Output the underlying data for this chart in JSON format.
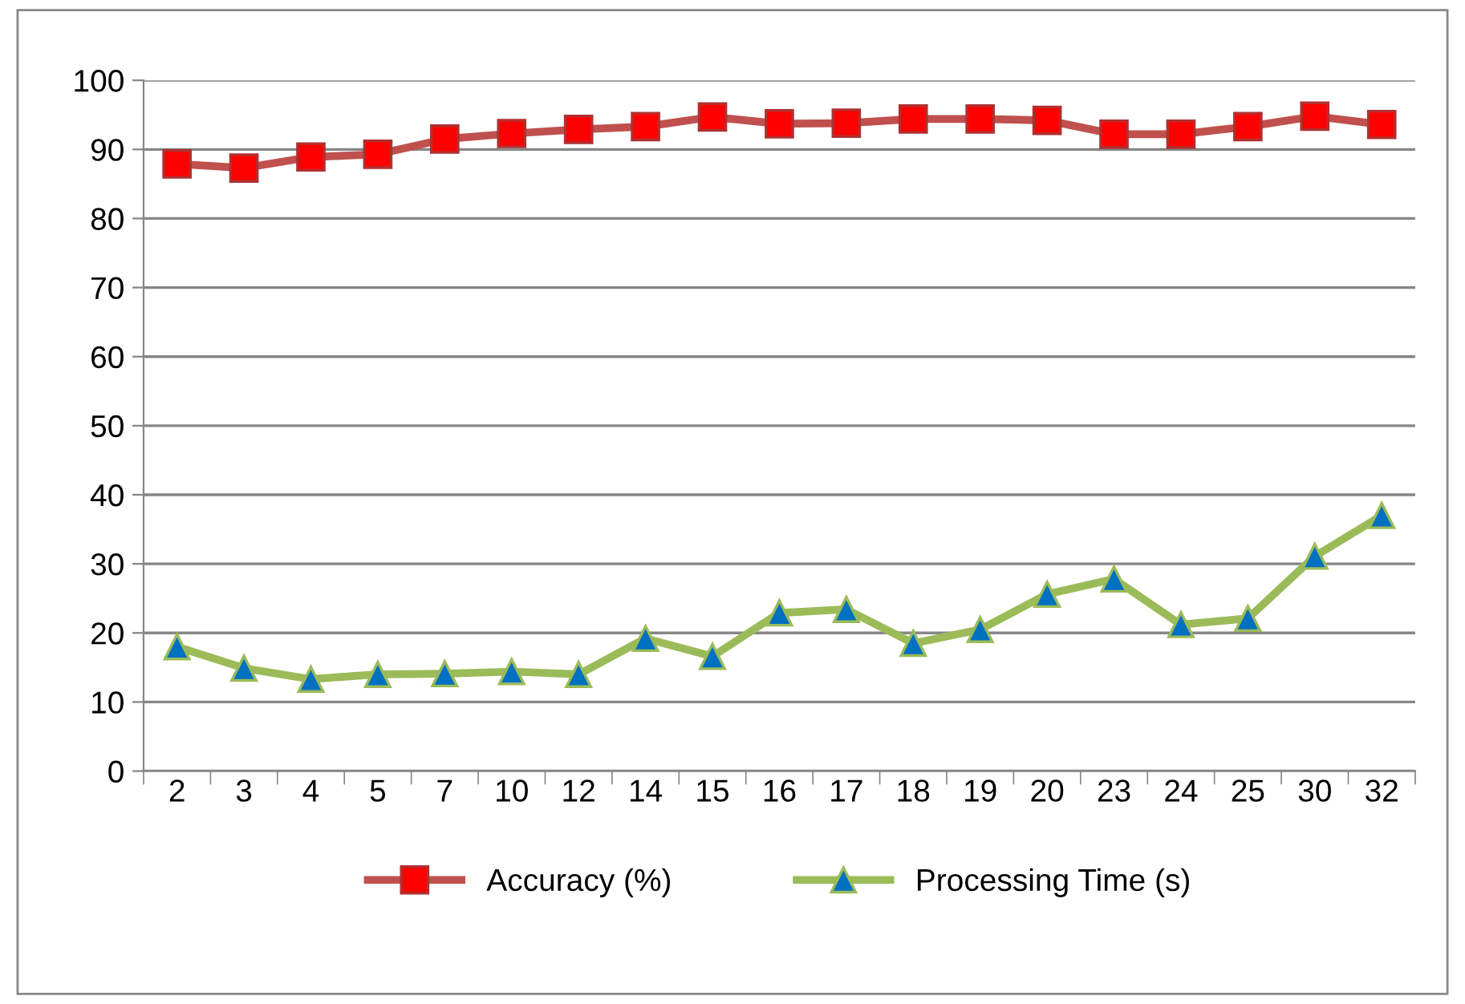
{
  "chart_data": {
    "type": "line",
    "categories": [
      "2",
      "3",
      "4",
      "5",
      "7",
      "10",
      "12",
      "14",
      "15",
      "16",
      "17",
      "18",
      "19",
      "20",
      "23",
      "24",
      "25",
      "30",
      "32"
    ],
    "series": [
      {
        "name": "Accuracy (%)",
        "color": "#c0504d",
        "marker": "square",
        "values": [
          87.9,
          87.3,
          88.9,
          89.3,
          91.5,
          92.3,
          92.9,
          93.3,
          94.7,
          93.7,
          93.8,
          94.4,
          94.4,
          94.2,
          92.2,
          92.2,
          93.3,
          94.8,
          93.6
        ]
      },
      {
        "name": "Processing Time (s)",
        "color": "#9bbb59",
        "marker": "triangle",
        "values": [
          18.0,
          14.9,
          13.3,
          14.0,
          14.1,
          14.4,
          14.0,
          19.2,
          16.6,
          22.9,
          23.4,
          18.5,
          20.5,
          25.6,
          27.8,
          21.2,
          22.1,
          31.1,
          37.0
        ]
      }
    ],
    "ylim": [
      0,
      100
    ],
    "yticks": [
      0,
      10,
      20,
      30,
      40,
      50,
      60,
      70,
      80,
      90,
      100
    ],
    "grid": "y",
    "legend": "bottom",
    "line_style": "solid"
  }
}
